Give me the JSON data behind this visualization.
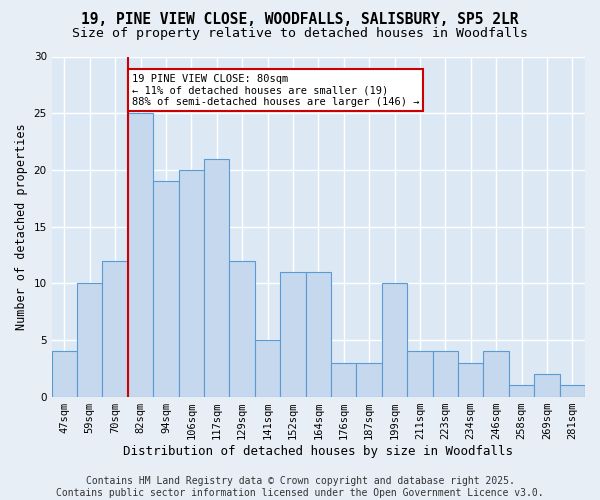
{
  "title": "19, PINE VIEW CLOSE, WOODFALLS, SALISBURY, SP5 2LR",
  "subtitle": "Size of property relative to detached houses in Woodfalls",
  "xlabel": "Distribution of detached houses by size in Woodfalls",
  "ylabel": "Number of detached properties",
  "categories": [
    "47sqm",
    "59sqm",
    "70sqm",
    "82sqm",
    "94sqm",
    "106sqm",
    "117sqm",
    "129sqm",
    "141sqm",
    "152sqm",
    "164sqm",
    "176sqm",
    "187sqm",
    "199sqm",
    "211sqm",
    "223sqm",
    "234sqm",
    "246sqm",
    "258sqm",
    "269sqm",
    "281sqm"
  ],
  "values": [
    4,
    10,
    12,
    25,
    19,
    20,
    21,
    12,
    5,
    11,
    11,
    3,
    3,
    10,
    4,
    4,
    3,
    4,
    1,
    2,
    1
  ],
  "bar_color": "#c5d8ed",
  "bar_edge_color": "#5b9bd5",
  "red_line_index": 3,
  "annotation_line1": "19 PINE VIEW CLOSE: 80sqm",
  "annotation_line2": "← 11% of detached houses are smaller (19)",
  "annotation_line3": "88% of semi-detached houses are larger (146) →",
  "annotation_box_color": "#ffffff",
  "annotation_box_edge": "#cc0000",
  "red_line_color": "#cc0000",
  "ylim": [
    0,
    30
  ],
  "yticks": [
    0,
    5,
    10,
    15,
    20,
    25,
    30
  ],
  "background_color": "#dce9f5",
  "grid_color": "#ffffff",
  "footer_line1": "Contains HM Land Registry data © Crown copyright and database right 2025.",
  "footer_line2": "Contains public sector information licensed under the Open Government Licence v3.0.",
  "title_fontsize": 10.5,
  "subtitle_fontsize": 9.5,
  "xlabel_fontsize": 9,
  "ylabel_fontsize": 8.5,
  "tick_fontsize": 7.5,
  "footer_fontsize": 7
}
